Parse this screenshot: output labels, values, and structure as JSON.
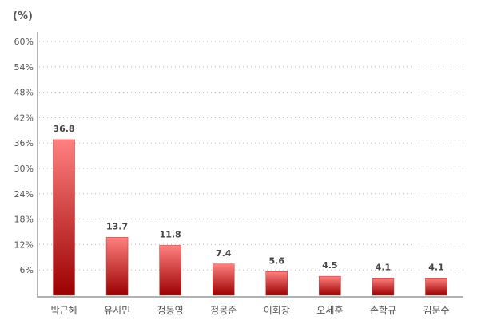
{
  "chart_data": {
    "type": "bar",
    "title": "",
    "ylabel": "(%)",
    "xlabel": "",
    "ylim": [
      0,
      60
    ],
    "yticks": [
      6,
      12,
      18,
      24,
      30,
      36,
      42,
      48,
      54,
      60
    ],
    "ytick_labels": [
      "6%",
      "12%",
      "18%",
      "24%",
      "30%",
      "36%",
      "42%",
      "48%",
      "54%",
      "60%"
    ],
    "grid": true,
    "categories": [
      "박근혜",
      "유시민",
      "정동영",
      "정몽준",
      "이회창",
      "오세훈",
      "손학규",
      "김문수"
    ],
    "values": [
      36.8,
      13.7,
      11.8,
      7.4,
      5.6,
      4.5,
      4.1,
      4.1
    ],
    "data_labels": [
      "36.8",
      "13.7",
      "11.8",
      "7.4",
      "5.6",
      "4.5",
      "4.1",
      "4.1"
    ],
    "colors": {
      "bar_top": "#ff8080",
      "bar_bottom": "#9c0000",
      "bar_border": "#b03030",
      "grid": "#bbbbbb",
      "axis": "#999999"
    }
  }
}
